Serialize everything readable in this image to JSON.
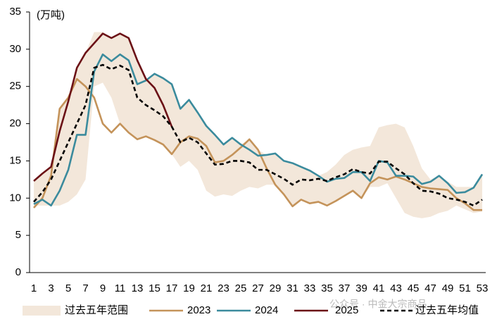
{
  "chart_data": {
    "type": "line",
    "ylabel": "(万吨)",
    "watermark": "公众号 · 中金大宗商品",
    "categories": [
      1,
      null,
      3,
      null,
      5,
      null,
      7,
      null,
      9,
      null,
      11,
      null,
      13,
      null,
      15,
      null,
      17,
      null,
      19,
      null,
      21,
      null,
      23,
      null,
      25,
      null,
      27,
      null,
      29,
      null,
      31,
      null,
      33,
      null,
      35,
      null,
      37,
      null,
      39,
      null,
      41,
      null,
      43,
      null,
      45,
      null,
      47,
      null,
      49,
      null,
      51,
      null,
      53
    ],
    "ylim": [
      0,
      35
    ],
    "yticks": [
      0,
      5,
      10,
      15,
      20,
      25,
      30,
      35
    ],
    "series": [
      {
        "name": "过去五年范围",
        "type": "band",
        "color": "#f3e7da",
        "low": [
          9,
          9,
          9,
          9,
          9.5,
          10.5,
          12.5,
          25,
          25.5,
          23.5,
          20,
          18.8,
          17.9,
          18.3,
          17.8,
          17.2,
          15.9,
          14.2,
          15,
          13.8,
          11,
          10.2,
          10.5,
          10.3,
          11,
          11.5,
          11.3,
          11.8,
          11.8,
          10.5,
          8.9,
          9.8,
          9.3,
          9.5,
          9,
          9.6,
          10.3,
          11,
          10,
          11.5,
          11.5,
          12,
          10,
          8,
          7.5,
          7.3,
          7.5,
          8,
          8.3,
          9,
          8.5,
          8,
          8.2
        ],
        "high": [
          12.3,
          13.3,
          14.2,
          22,
          23.5,
          27.5,
          29.5,
          32.3,
          32.3,
          31.5,
          32.1,
          31.5,
          28.5,
          26,
          26.7,
          26.1,
          25.3,
          22,
          23.2,
          21.5,
          19.7,
          18.5,
          17.2,
          18.1,
          17.2,
          17.9,
          16.5,
          15.8,
          16,
          15,
          14.7,
          14.2,
          13.7,
          13,
          13.5,
          14.5,
          15.8,
          16.5,
          16.8,
          17,
          19.5,
          19.8,
          20,
          19.5,
          17,
          14,
          12.5,
          13,
          12.2,
          11.5,
          11.5,
          11.5,
          13.2
        ]
      },
      {
        "name": "2023",
        "color": "#c4935a",
        "values": [
          8.7,
          10,
          13,
          22,
          23.5,
          26,
          25,
          23.5,
          20,
          18.8,
          20,
          18.8,
          17.9,
          18.3,
          17.8,
          17.2,
          15.9,
          17.5,
          18.3,
          18,
          17,
          14.8,
          15,
          15.8,
          16.8,
          17.9,
          16.5,
          14,
          11.8,
          10.5,
          8.9,
          9.8,
          9.3,
          9.5,
          9,
          9.6,
          10.3,
          11,
          10,
          12,
          12.8,
          12.5,
          12.9,
          12.5,
          12,
          11.5,
          11.3,
          11.2,
          11.1,
          10,
          9.3,
          8.4,
          8.4
        ]
      },
      {
        "name": "2024",
        "color": "#3b8b9d",
        "values": [
          9.2,
          9.8,
          9,
          11,
          13.8,
          18.5,
          18.5,
          27,
          29.3,
          28.4,
          29.3,
          28.5,
          25.3,
          25.8,
          26.7,
          26.1,
          25.3,
          22,
          23.2,
          21.5,
          19.7,
          18.5,
          17.2,
          18.1,
          17.2,
          16.5,
          15.7,
          15.8,
          16,
          15,
          14.7,
          14.2,
          13.7,
          13,
          12.2,
          12.6,
          12.7,
          13.5,
          13.5,
          12.3,
          15,
          14.8,
          13,
          13,
          12.9,
          11.9,
          12.2,
          13,
          12,
          10.7,
          10.8,
          11.4,
          13.2
        ]
      },
      {
        "name": "2025",
        "color": "#6b1016",
        "values": [
          12.3,
          13.3,
          14.2,
          19,
          23,
          27.5,
          29.5,
          30.8,
          32.1,
          31.5,
          32.1,
          31.5,
          28.5,
          26,
          24.8,
          22.5,
          19.6,
          null,
          null,
          null,
          null,
          null,
          null,
          null,
          null,
          null,
          null,
          null,
          null,
          null,
          null,
          null,
          null,
          null,
          null,
          null,
          null,
          null,
          null,
          null,
          null,
          null,
          null,
          null,
          null,
          null,
          null,
          null,
          null,
          null,
          null,
          null,
          null
        ]
      },
      {
        "name": "过去五年均值",
        "color": "#000000",
        "dash": true,
        "values": [
          9.5,
          10.8,
          12.5,
          15,
          17.5,
          20,
          22.5,
          27.5,
          27.9,
          27.3,
          27.8,
          27.2,
          23.5,
          22.5,
          21.8,
          21,
          19.6,
          17.5,
          18.1,
          17.5,
          16,
          14.5,
          14.6,
          15,
          15,
          14.8,
          13.8,
          13.8,
          13.2,
          12.6,
          11.8,
          12.5,
          12.4,
          12.6,
          12.3,
          12.8,
          13.2,
          13.9,
          13.5,
          13.3,
          14.9,
          14.9,
          14,
          13.2,
          12,
          11,
          10.9,
          10.6,
          10,
          9.8,
          9.5,
          9,
          9.8
        ]
      }
    ]
  }
}
